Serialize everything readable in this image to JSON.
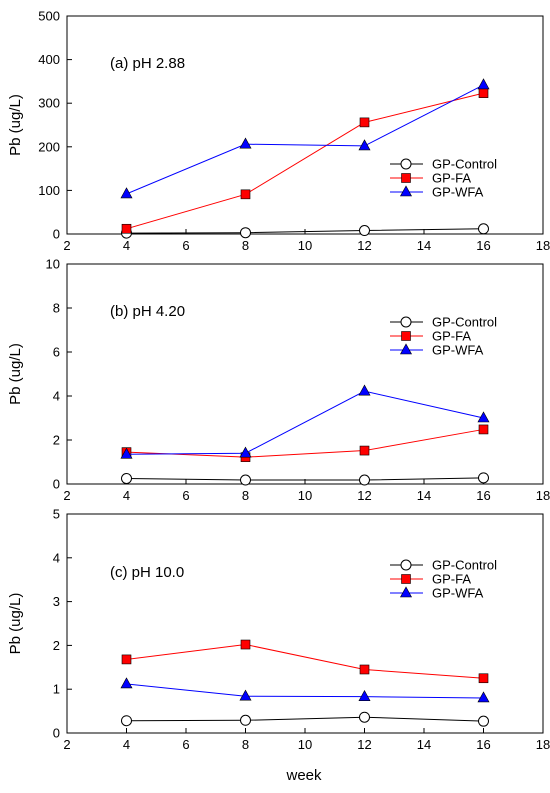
{
  "figure": {
    "xlabel": "week"
  },
  "chart_data": [
    {
      "type": "line",
      "annotation": "(a) pH 2.88",
      "ylabel": "Pb (ug/L)",
      "xlim": [
        2,
        18
      ],
      "xticks": [
        2,
        4,
        6,
        8,
        10,
        12,
        14,
        16,
        18
      ],
      "ylim": [
        0,
        500
      ],
      "yticks": [
        0,
        100,
        200,
        300,
        400,
        500
      ],
      "x": [
        4,
        8,
        12,
        16
      ],
      "legend_position": "right",
      "series": [
        {
          "name": "GP-Control",
          "values": [
            2,
            3,
            8,
            12
          ],
          "color": "#000000",
          "marker": "circle"
        },
        {
          "name": "GP-FA",
          "values": [
            12,
            91,
            256,
            323
          ],
          "color": "#ff0000",
          "marker": "square"
        },
        {
          "name": "GP-WFA",
          "values": [
            92,
            206,
            202,
            342
          ],
          "color": "#0000ff",
          "marker": "triangle"
        }
      ]
    },
    {
      "type": "line",
      "annotation": "(b) pH 4.20",
      "ylabel": "Pb (ug/L)",
      "xlim": [
        2,
        18
      ],
      "xticks": [
        2,
        4,
        6,
        8,
        10,
        12,
        14,
        16,
        18
      ],
      "ylim": [
        0,
        10
      ],
      "yticks": [
        0,
        2,
        4,
        6,
        8,
        10
      ],
      "x": [
        4,
        8,
        12,
        16
      ],
      "legend_position": "top-right",
      "series": [
        {
          "name": "GP-Control",
          "values": [
            0.25,
            0.18,
            0.18,
            0.28
          ],
          "color": "#000000",
          "marker": "circle"
        },
        {
          "name": "GP-FA",
          "values": [
            1.45,
            1.22,
            1.52,
            2.48
          ],
          "color": "#ff0000",
          "marker": "square"
        },
        {
          "name": "GP-WFA",
          "values": [
            1.35,
            1.4,
            4.22,
            3.0
          ],
          "color": "#0000ff",
          "marker": "triangle"
        }
      ]
    },
    {
      "type": "line",
      "annotation": "(c) pH 10.0",
      "ylabel": "Pb (ug/L)",
      "xlim": [
        2,
        18
      ],
      "xticks": [
        2,
        4,
        6,
        8,
        10,
        12,
        14,
        16,
        18
      ],
      "ylim": [
        0,
        5
      ],
      "yticks": [
        0,
        1,
        2,
        3,
        4,
        5
      ],
      "x": [
        4,
        8,
        12,
        16
      ],
      "legend_position": "top-right",
      "series": [
        {
          "name": "GP-Control",
          "values": [
            0.28,
            0.29,
            0.36,
            0.27
          ],
          "color": "#000000",
          "marker": "circle"
        },
        {
          "name": "GP-FA",
          "values": [
            1.68,
            2.02,
            1.45,
            1.25
          ],
          "color": "#ff0000",
          "marker": "square"
        },
        {
          "name": "GP-WFA",
          "values": [
            1.12,
            0.84,
            0.83,
            0.8
          ],
          "color": "#0000ff",
          "marker": "triangle"
        }
      ]
    }
  ]
}
